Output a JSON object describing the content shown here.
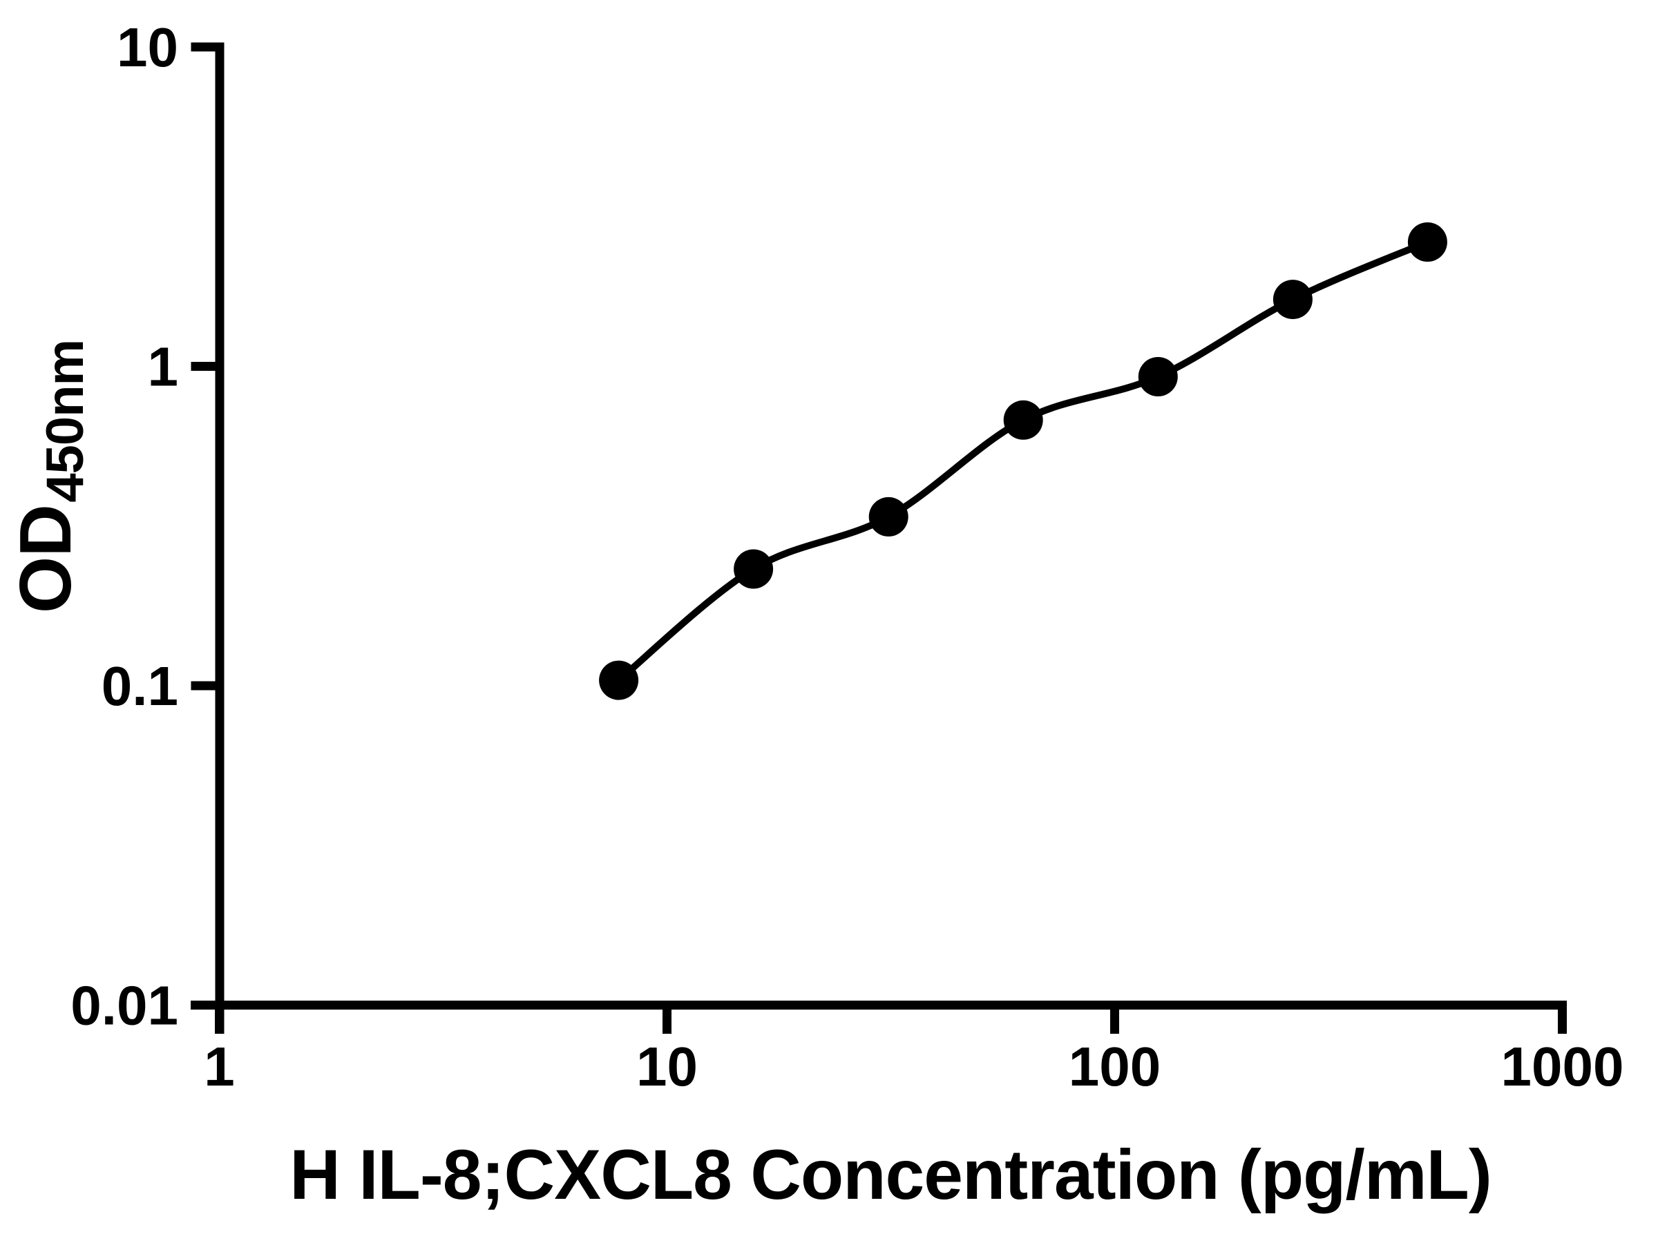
{
  "chart_data": {
    "type": "scatter",
    "subtype": "log-log standard curve with fitted smooth line",
    "title": "",
    "xlabel": "H IL-8;CXCL8 Concentration (pg/mL)",
    "ylabel": "OD450nm",
    "ylabel_parts": {
      "main": "OD",
      "sub": "450nm"
    },
    "x_scale": "log10",
    "y_scale": "log10",
    "xlim": [
      1,
      1000
    ],
    "ylim": [
      0.01,
      10
    ],
    "x_ticks": [
      "1",
      "10",
      "100",
      "1000"
    ],
    "y_ticks": [
      "10",
      "1",
      "0.1",
      "0.01"
    ],
    "grid": false,
    "legend": "none",
    "series": [
      {
        "marker": "filled-circle",
        "line": "smooth fit through points",
        "color": "#000000",
        "x": [
          7.8,
          15.6,
          31.25,
          62.5,
          125,
          250,
          500
        ],
        "y": [
          0.104,
          0.232,
          0.338,
          0.679,
          0.928,
          1.62,
          2.45
        ]
      }
    ]
  },
  "colors": {
    "foreground": "#000000",
    "background": "#ffffff"
  }
}
